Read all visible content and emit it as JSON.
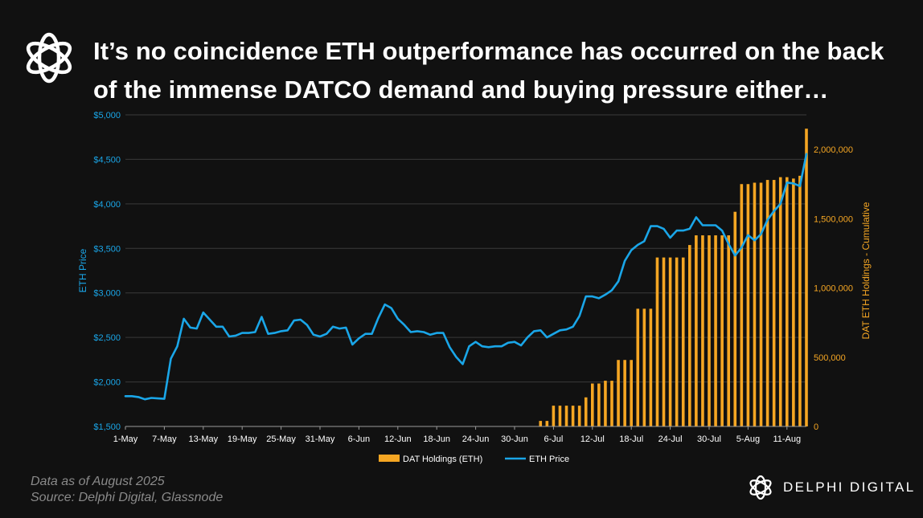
{
  "header": {
    "title_line1": "It’s no coincidence ETH outperformance has occurred on the back",
    "title_line2": "of the immense DATCO demand and buying pressure either…"
  },
  "footer": {
    "note": "Data as of August  2025",
    "source": "Source:  Delphi Digital, Glassnode",
    "brand": "DELPHI DIGITAL"
  },
  "colors": {
    "background": "#111111",
    "price_line": "#1aa6e8",
    "bars": "#f5a623",
    "grid": "#3a3a3a"
  },
  "chart_data": {
    "type": "bar+line",
    "title": "",
    "xlabel": "",
    "ylabel_left": "ETH Price",
    "ylabel_right": "DAT ETH Holdings - Cumulative",
    "ylim_left": [
      1500,
      5000
    ],
    "ylim_right": [
      0,
      2250000
    ],
    "y_ticks_left": [
      "$1,500",
      "$2,000",
      "$2,500",
      "$3,000",
      "$3,500",
      "$4,000",
      "$4,500",
      "$5,000"
    ],
    "y_ticks_right": [
      "0",
      "500,000",
      "1,000,000",
      "1,500,000",
      "2,000,000"
    ],
    "x_tick_labels": [
      "1-May",
      "7-May",
      "13-May",
      "19-May",
      "25-May",
      "31-May",
      "6-Jun",
      "12-Jun",
      "18-Jun",
      "24-Jun",
      "30-Jun",
      "6-Jul",
      "12-Jul",
      "18-Jul",
      "24-Jul",
      "30-Jul",
      "5-Aug",
      "11-Aug"
    ],
    "legend": [
      "DAT Holdings (ETH)",
      "ETH Price"
    ],
    "legend_position": "bottom-center",
    "series": [
      {
        "name": "ETH Price",
        "type": "line",
        "axis": "left",
        "start_date": "1-May",
        "values": [
          1840,
          1840,
          1830,
          1805,
          1820,
          1815,
          1810,
          2260,
          2400,
          2710,
          2610,
          2600,
          2780,
          2700,
          2620,
          2620,
          2510,
          2520,
          2550,
          2550,
          2560,
          2730,
          2540,
          2550,
          2570,
          2580,
          2690,
          2700,
          2640,
          2530,
          2510,
          2540,
          2620,
          2600,
          2610,
          2420,
          2490,
          2540,
          2540,
          2720,
          2870,
          2830,
          2710,
          2640,
          2560,
          2570,
          2560,
          2530,
          2550,
          2550,
          2390,
          2280,
          2200,
          2400,
          2450,
          2400,
          2390,
          2400,
          2400,
          2440,
          2450,
          2410,
          2500,
          2570,
          2580,
          2500,
          2540,
          2580,
          2590,
          2620,
          2740,
          2960,
          2960,
          2940,
          2980,
          3030,
          3130,
          3360,
          3480,
          3540,
          3580,
          3750,
          3750,
          3720,
          3620,
          3700,
          3700,
          3720,
          3850,
          3760,
          3760,
          3760,
          3700,
          3550,
          3420,
          3510,
          3650,
          3590,
          3660,
          3820,
          3920,
          4000,
          4240,
          4230,
          4200,
          4560
        ]
      },
      {
        "name": "DAT Holdings (ETH)",
        "type": "bar",
        "axis": "right",
        "start_date": "6-Jul",
        "values": [
          40000,
          40000,
          150000,
          150000,
          150000,
          150000,
          150000,
          210000,
          310000,
          310000,
          330000,
          330000,
          480000,
          480000,
          480000,
          850000,
          850000,
          850000,
          1220000,
          1220000,
          1220000,
          1220000,
          1220000,
          1310000,
          1380000,
          1380000,
          1380000,
          1380000,
          1380000,
          1380000,
          1550000,
          1750000,
          1750000,
          1760000,
          1760000,
          1780000,
          1780000,
          1800000,
          1800000,
          1790000,
          1810000,
          2150000
        ]
      }
    ]
  }
}
